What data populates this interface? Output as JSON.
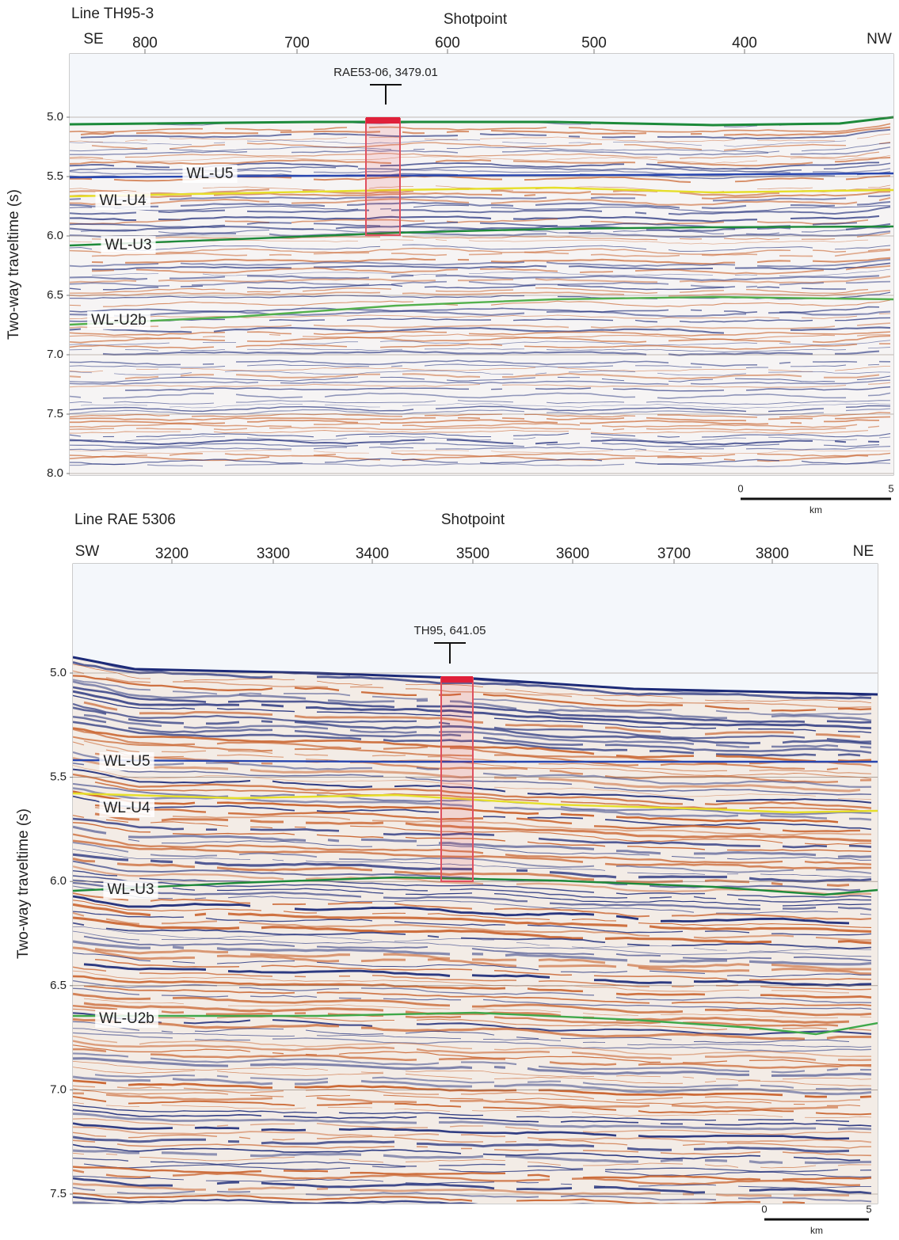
{
  "panels": [
    {
      "title": "Line TH95-3",
      "x_label": "Shotpoint",
      "left_dir": "SE",
      "right_dir": "NW",
      "x_ticks": [
        "800",
        "700",
        "600",
        "500",
        "400"
      ],
      "y_label": "Two-way traveltime (s)",
      "y_ticks": [
        "5.0",
        "5.5",
        "6.0",
        "6.5",
        "7.0",
        "7.5",
        "8.0"
      ],
      "well_label": "RAE53-06, 3479.01",
      "horizons": [
        "WL-U5",
        "WL-U4",
        "WL-U3",
        "WL-U2b"
      ],
      "scale_bar": {
        "start": "0",
        "end": "5",
        "unit": "km"
      }
    },
    {
      "title": "Line RAE 5306",
      "x_label": "Shotpoint",
      "left_dir": "SW",
      "right_dir": "NE",
      "x_ticks": [
        "3200",
        "3300",
        "3400",
        "3500",
        "3600",
        "3700",
        "3800"
      ],
      "y_label": "Two-way traveltime (s)",
      "y_ticks": [
        "5.0",
        "5.5",
        "6.0",
        "6.5",
        "7.0",
        "7.5"
      ],
      "well_label": "TH95, 641.05",
      "horizons": [
        "WL-U5",
        "WL-U4",
        "WL-U3",
        "WL-U2b"
      ],
      "scale_bar": {
        "start": "0",
        "end": "5",
        "unit": "km"
      }
    }
  ]
}
